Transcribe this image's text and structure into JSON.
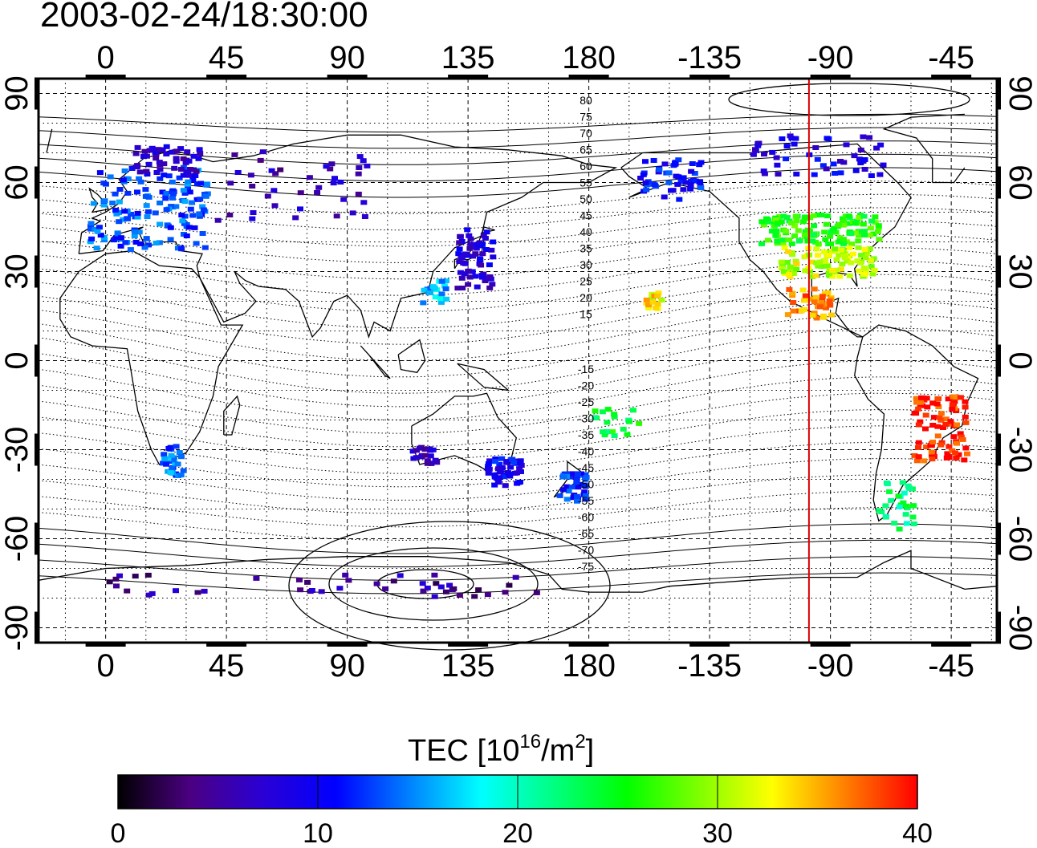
{
  "title": "2003-02-24/18:30:00",
  "lon_ticks": [
    "0",
    "45",
    "90",
    "135",
    "180",
    "-135",
    "-90",
    "-45"
  ],
  "lat_ticks_left": [
    "90",
    "60",
    "30",
    "0",
    "-30",
    "-60",
    "-90"
  ],
  "lat_ticks_right": [
    "90",
    "60",
    "30",
    "0",
    "-30",
    "-60",
    "-90"
  ],
  "lat_ticks_values": [
    90,
    60,
    30,
    0,
    -30,
    -60,
    -90
  ],
  "lon_ticks_values": [
    0,
    45,
    90,
    135,
    180,
    225,
    270,
    315
  ],
  "map_extent": {
    "lon_min": -25,
    "lon_max": 332,
    "lat_min": -95,
    "lat_max": 95
  },
  "meridian_marker": {
    "lon": -98,
    "color": "#dd0000"
  },
  "mag_lat_labels_north": [
    "80",
    "75",
    "70",
    "65",
    "60",
    "55",
    "50",
    "45",
    "40",
    "35",
    "30",
    "25",
    "20",
    "15"
  ],
  "mag_lat_labels_south": [
    "-15",
    "-20",
    "-25",
    "-30",
    "-35",
    "-40",
    "-45",
    "-50",
    "-55",
    "-60",
    "-65",
    "-70",
    "-75"
  ],
  "colorbar": {
    "label_main": "TEC  [10",
    "label_sup1": "16",
    "label_mid": "/m",
    "label_sup2": "2",
    "label_end": "]",
    "min": 0,
    "max": 40,
    "ticks": [
      "0",
      "10",
      "20",
      "30",
      "40"
    ],
    "colors": [
      "#000000",
      "#4b0082",
      "#2a00d5",
      "#0000ff",
      "#0080ff",
      "#00ffff",
      "#00ff80",
      "#00ff00",
      "#80ff00",
      "#ffff00",
      "#ff8000",
      "#ff0000"
    ]
  },
  "tec_clusters": [
    {
      "region": "europe",
      "lon": 15,
      "lat": 52,
      "lon_spread": 22,
      "lat_spread": 14,
      "tec": 13,
      "count": 150
    },
    {
      "region": "scandinavia",
      "lon": 22,
      "lat": 68,
      "lon_spread": 12,
      "lat_spread": 5,
      "tec": 7,
      "count": 50
    },
    {
      "region": "russia",
      "lon": 70,
      "lat": 60,
      "lon_spread": 30,
      "lat_spread": 12,
      "tec": 6,
      "count": 40
    },
    {
      "region": "japan",
      "lon": 137,
      "lat": 35,
      "lon_spread": 7,
      "lat_spread": 10,
      "tec": 8,
      "count": 60
    },
    {
      "region": "taiwan",
      "lon": 121,
      "lat": 24,
      "lon_spread": 5,
      "lat_spread": 4,
      "tec": 16,
      "count": 20
    },
    {
      "region": "alaska",
      "lon": -150,
      "lat": 62,
      "lon_spread": 12,
      "lat_spread": 7,
      "tec": 11,
      "count": 50
    },
    {
      "region": "canada",
      "lon": -95,
      "lat": 70,
      "lon_spread": 25,
      "lat_spread": 7,
      "tec": 9,
      "count": 50
    },
    {
      "region": "usa_north",
      "lon": -95,
      "lat": 45,
      "lon_spread": 22,
      "lat_spread": 5,
      "tec": 26,
      "count": 130
    },
    {
      "region": "usa_south",
      "lon": -92,
      "lat": 34,
      "lon_spread": 18,
      "lat_spread": 5,
      "tec": 31,
      "count": 100
    },
    {
      "region": "mexico",
      "lon": -98,
      "lat": 20,
      "lon_spread": 9,
      "lat_spread": 5,
      "tec": 36,
      "count": 40
    },
    {
      "region": "hawaii",
      "lon": -157,
      "lat": 21,
      "lon_spread": 3,
      "lat_spread": 3,
      "tec": 33,
      "count": 15
    },
    {
      "region": "s_america",
      "lon": -50,
      "lat": -22,
      "lon_spread": 10,
      "lat_spread": 11,
      "tec": 39,
      "count": 90
    },
    {
      "region": "patagonia",
      "lon": -67,
      "lat": -48,
      "lon_spread": 7,
      "lat_spread": 8,
      "tec": 22,
      "count": 30
    },
    {
      "region": "australia_se",
      "lon": 147,
      "lat": -37,
      "lon_spread": 7,
      "lat_spread": 5,
      "tec": 10,
      "count": 50
    },
    {
      "region": "australia_sw",
      "lon": 118,
      "lat": -31,
      "lon_spread": 5,
      "lat_spread": 3,
      "tec": 6,
      "count": 20
    },
    {
      "region": "new_zealand",
      "lon": 173,
      "lat": -42,
      "lon_spread": 5,
      "lat_spread": 5,
      "tec": 12,
      "count": 40
    },
    {
      "region": "south_africa",
      "lon": 24,
      "lat": -33,
      "lon_spread": 4,
      "lat_spread": 5,
      "tec": 14,
      "count": 30
    },
    {
      "region": "pacific_islands",
      "lon": -172,
      "lat": -20,
      "lon_spread": 10,
      "lat_spread": 5,
      "tec": 24,
      "count": 20
    },
    {
      "region": "antarctica",
      "lon": 80,
      "lat": -75,
      "lon_spread": 80,
      "lat_spread": 4,
      "tec": 5,
      "count": 45
    }
  ]
}
